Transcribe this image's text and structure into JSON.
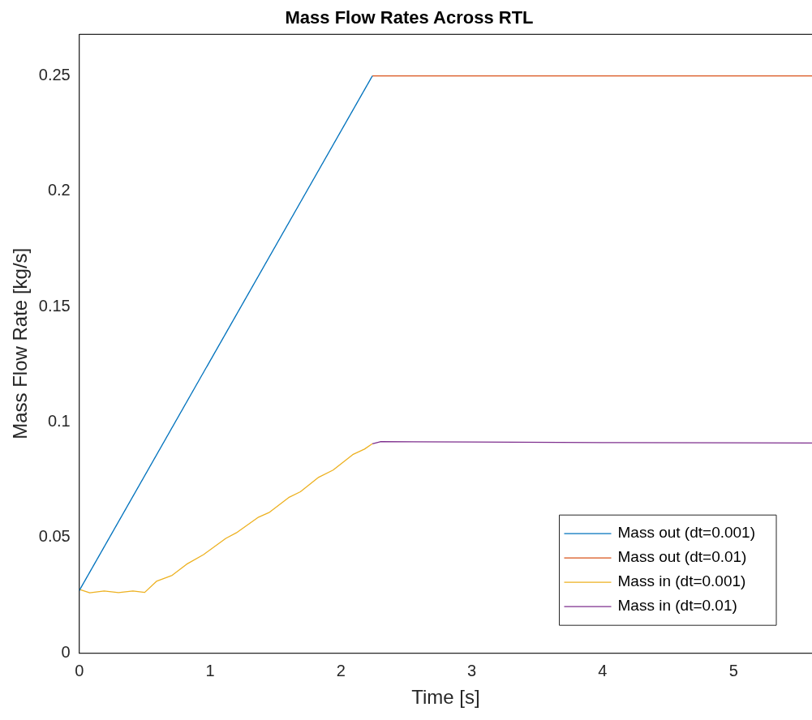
{
  "chart_data": {
    "type": "line",
    "title": "Mass Flow Rates Across RTL",
    "xlabel": "Time [s]",
    "ylabel": "Mass Flow Rate [kg/s]",
    "xlim": [
      0,
      5.6
    ],
    "ylim": [
      0,
      0.268
    ],
    "xticks": [
      0,
      1,
      2,
      3,
      4,
      5
    ],
    "yticks": [
      0,
      0.05,
      0.1,
      0.15,
      0.2,
      0.25
    ],
    "grid": false,
    "legend": "bottom right",
    "marker": "none",
    "line_style": "solid",
    "series": [
      {
        "name": "Mass out (dt=0.001)",
        "color": "#0072bd",
        "x": [
          0,
          2.24
        ],
        "values": [
          0.027,
          0.25
        ]
      },
      {
        "name": "Mass out (dt=0.01)",
        "color": "#d95319",
        "x": [
          2.24,
          5.6
        ],
        "values": [
          0.25,
          0.25
        ]
      },
      {
        "name": "Mass in (dt=0.001)",
        "color": "#edb120",
        "x": [
          0,
          0.08,
          0.19,
          0.3,
          0.41,
          0.5,
          0.59,
          0.71,
          0.82,
          0.95,
          1.12,
          1.2,
          1.37,
          1.45,
          1.6,
          1.69,
          1.83,
          1.94,
          2.09,
          2.18,
          2.24
        ],
        "values": [
          0.0275,
          0.026,
          0.0268,
          0.0261,
          0.0268,
          0.0262,
          0.031,
          0.0336,
          0.0384,
          0.0426,
          0.0496,
          0.052,
          0.0588,
          0.0608,
          0.0673,
          0.0698,
          0.0761,
          0.0792,
          0.0859,
          0.0883,
          0.0906
        ]
      },
      {
        "name": "Mass in (dt=0.01)",
        "color": "#7e2f8e",
        "x": [
          2.24,
          2.3,
          3,
          4,
          5,
          5.6
        ],
        "values": [
          0.0906,
          0.0915,
          0.0914,
          0.0911,
          0.091,
          0.0909
        ]
      }
    ]
  }
}
